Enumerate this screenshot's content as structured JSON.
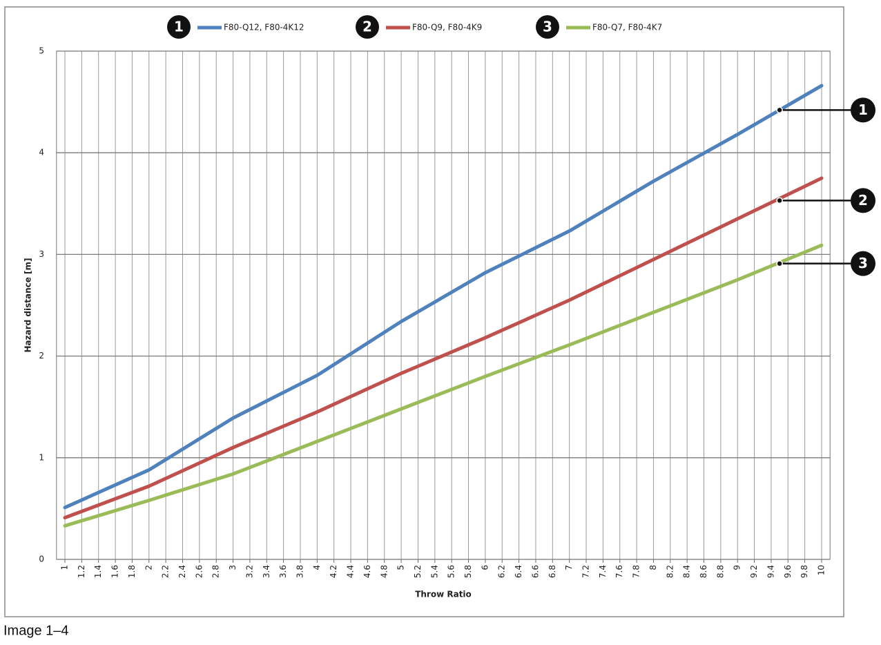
{
  "chart_data": {
    "type": "line",
    "caption": "Image 1–4",
    "xlabel": "Throw Ratio",
    "ylabel": "Hazard distance [m]",
    "x": [
      1,
      2,
      3,
      4,
      5,
      6,
      7,
      8,
      9,
      10
    ],
    "series": [
      {
        "name": "F80-Q12, F80-4K12",
        "marker_label": "1",
        "color": "#4f81bd",
        "values": [
          0.51,
          0.88,
          1.39,
          1.81,
          2.34,
          2.82,
          3.23,
          3.72,
          4.18,
          4.66
        ]
      },
      {
        "name": "F80-Q9, F80-4K9",
        "marker_label": "2",
        "color": "#c0504d",
        "values": [
          0.41,
          0.72,
          1.1,
          1.45,
          1.83,
          2.18,
          2.55,
          2.95,
          3.35,
          3.75
        ]
      },
      {
        "name": "F80-Q7, F80-4K7",
        "marker_label": "3",
        "color": "#9bbb59",
        "values": [
          0.33,
          0.58,
          0.84,
          1.16,
          1.48,
          1.8,
          2.11,
          2.43,
          2.75,
          3.09
        ]
      }
    ],
    "annotations": [
      {
        "text": "1",
        "x": 9.5,
        "y": 4.42
      },
      {
        "text": "2",
        "x": 9.5,
        "y": 3.53
      },
      {
        "text": "3",
        "x": 9.5,
        "y": 2.91
      }
    ],
    "xlim": [
      0.9,
      10.1
    ],
    "ylim": [
      0,
      5
    ],
    "xticks": [
      1,
      1.2,
      1.4,
      1.6,
      1.8,
      2,
      2.2,
      2.4,
      2.6,
      2.8,
      3,
      3.2,
      3.4,
      3.6,
      3.8,
      4,
      4.2,
      4.4,
      4.6,
      4.8,
      5,
      5.2,
      5.4,
      5.6,
      5.8,
      6,
      6.2,
      6.4,
      6.6,
      6.8,
      7,
      7.2,
      7.4,
      7.6,
      7.8,
      8,
      8.2,
      8.4,
      8.6,
      8.8,
      9,
      9.2,
      9.4,
      9.6,
      9.8,
      10
    ],
    "yticks": [
      0,
      1,
      2,
      3,
      4,
      5
    ],
    "grid": true
  }
}
